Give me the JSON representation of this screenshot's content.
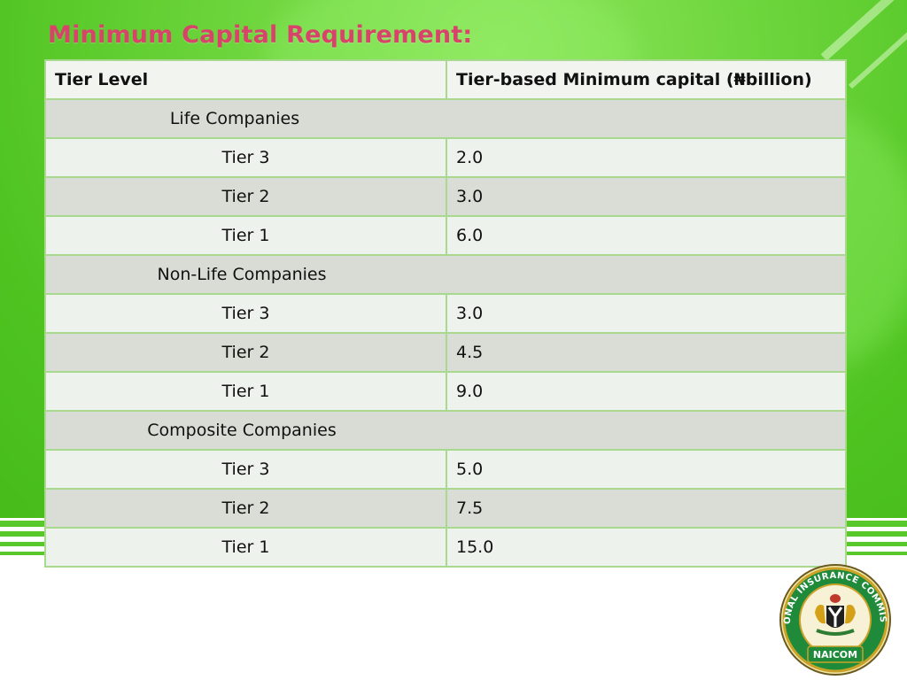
{
  "title": "Minimum Capital Requirement:",
  "table": {
    "headers": [
      "Tier Level",
      "Tier-based Minimum capital (₦billion)"
    ],
    "groups": [
      {
        "label": "Life Companies",
        "rows": [
          {
            "tier": "Tier 3",
            "value": "2.0"
          },
          {
            "tier": "Tier 2",
            "value": "3.0"
          },
          {
            "tier": "Tier 1",
            "value": "6.0"
          }
        ]
      },
      {
        "label": "Non-Life Companies",
        "rows": [
          {
            "tier": "Tier 3",
            "value": "3.0"
          },
          {
            "tier": "Tier 2",
            "value": "4.5"
          },
          {
            "tier": "Tier 1",
            "value": "9.0"
          }
        ]
      },
      {
        "label": "Composite Companies",
        "rows": [
          {
            "tier": "Tier 3",
            "value": "5.0"
          },
          {
            "tier": "Tier 2",
            "value": "7.5"
          },
          {
            "tier": "Tier 1",
            "value": "15.0"
          }
        ]
      }
    ]
  },
  "logo": {
    "ring_text": "NATIONAL INSURANCE COMMISSION",
    "acronym": "NAICOM"
  },
  "colors": {
    "title": "#d8436a",
    "background_green": "#4fc421",
    "table_border": "#a9d98f"
  }
}
